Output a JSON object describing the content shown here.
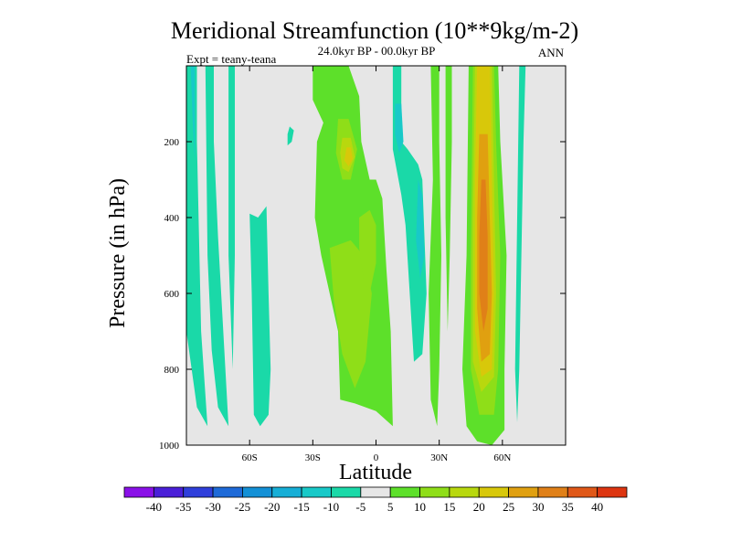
{
  "chart_data": {
    "type": "heatmap",
    "subtype": "filled-contour",
    "title": "Meridional Streamfunction (10**9kg/m-2)",
    "subtitle": "24.0kyr BP - 00.0kyr BP",
    "left_label": "Expt = teany-teana",
    "right_label": "ANN",
    "xlabel": "Latitude",
    "ylabel": "Pressure (in hPa)",
    "xlim": [
      -90,
      90
    ],
    "ylim": [
      0,
      1000
    ],
    "y_inverted": true,
    "x_ticks": [
      {
        "value": -60,
        "label": "60S"
      },
      {
        "value": -30,
        "label": "30S"
      },
      {
        "value": 0,
        "label": "0"
      },
      {
        "value": 30,
        "label": "30N"
      },
      {
        "value": 60,
        "label": "60N"
      }
    ],
    "y_ticks": [
      {
        "value": 200,
        "label": "200"
      },
      {
        "value": 400,
        "label": "400"
      },
      {
        "value": 600,
        "label": "600"
      },
      {
        "value": 800,
        "label": "800"
      },
      {
        "value": 1000,
        "label": "1000"
      }
    ],
    "background_color": "#e6e6e6",
    "colorbar": {
      "levels": [
        -40,
        -35,
        -30,
        -25,
        -20,
        -15,
        -10,
        -5,
        5,
        10,
        15,
        20,
        25,
        30,
        35,
        40
      ],
      "labels": [
        "-40",
        "-35",
        "-30",
        "-25",
        "-20",
        "-15",
        "-10",
        "-5",
        "5",
        "10",
        "15",
        "20",
        "25",
        "30",
        "35",
        "40"
      ],
      "colors": [
        "#8a10e8",
        "#4a1fd8",
        "#2f3fdb",
        "#1e6ad8",
        "#1390d6",
        "#16aed6",
        "#18c9c8",
        "#1ad9a8",
        "#e6e6e6",
        "#5de02a",
        "#8fde18",
        "#b8d80e",
        "#d8c80a",
        "#e0a010",
        "#e08018",
        "#e05818",
        "#dd3510"
      ]
    },
    "regions": [
      {
        "name": "sh-polar-band-a",
        "level": -10,
        "points": [
          [
            -90,
            0
          ],
          [
            -85,
            0
          ],
          [
            -85,
            200
          ],
          [
            -84,
            450
          ],
          [
            -83,
            700
          ],
          [
            -80,
            950
          ],
          [
            -85,
            900
          ],
          [
            -90,
            700
          ]
        ]
      },
      {
        "name": "sh-polar-band-b",
        "level": -10,
        "points": [
          [
            -81,
            0
          ],
          [
            -77,
            0
          ],
          [
            -77,
            200
          ],
          [
            -75,
            450
          ],
          [
            -72,
            750
          ],
          [
            -70,
            950
          ],
          [
            -75,
            900
          ],
          [
            -78,
            750
          ],
          [
            -80,
            500
          ]
        ]
      },
      {
        "name": "sh-polar-core",
        "level": -15,
        "points": [
          [
            -88,
            0
          ],
          [
            -86,
            0
          ],
          [
            -86,
            150
          ],
          [
            -86,
            250
          ],
          [
            -87,
            150
          ]
        ]
      },
      {
        "name": "sh-narrow-strip",
        "level": -10,
        "points": [
          [
            -70,
            0
          ],
          [
            -67,
            0
          ],
          [
            -67,
            200
          ],
          [
            -67,
            500
          ],
          [
            -68,
            800
          ],
          [
            -70,
            500
          ],
          [
            -70,
            200
          ]
        ]
      },
      {
        "name": "sh-midlat-column",
        "level": -10,
        "points": [
          [
            -60,
            390
          ],
          [
            -56,
            400
          ],
          [
            -52,
            370
          ],
          [
            -51,
            600
          ],
          [
            -50,
            800
          ],
          [
            -51,
            920
          ],
          [
            -55,
            950
          ],
          [
            -58,
            920
          ],
          [
            -59,
            600
          ]
        ]
      },
      {
        "name": "sh-small-blob",
        "level": -10,
        "points": [
          [
            -42,
            210
          ],
          [
            -40,
            200
          ],
          [
            -39,
            170
          ],
          [
            -41,
            160
          ],
          [
            -42,
            180
          ]
        ]
      },
      {
        "name": "tropical-broad-green",
        "level": 5,
        "points": [
          [
            -30,
            0
          ],
          [
            -13,
            0
          ],
          [
            -8,
            80
          ],
          [
            -7,
            200
          ],
          [
            -3,
            300
          ],
          [
            0,
            300
          ],
          [
            3,
            350
          ],
          [
            5,
            540
          ],
          [
            7,
            700
          ],
          [
            8,
            950
          ],
          [
            0,
            910
          ],
          [
            -10,
            890
          ],
          [
            -17,
            880
          ],
          [
            -18,
            700
          ],
          [
            -22,
            600
          ],
          [
            -26,
            500
          ],
          [
            -29,
            400
          ],
          [
            -28,
            200
          ],
          [
            -25,
            150
          ],
          [
            -30,
            90
          ]
        ]
      },
      {
        "name": "tropical-yellowgreen-left",
        "level": 10,
        "points": [
          [
            -18,
            140
          ],
          [
            -13,
            140
          ],
          [
            -9,
            220
          ],
          [
            -12,
            300
          ],
          [
            -16,
            300
          ],
          [
            -19,
            230
          ]
        ]
      },
      {
        "name": "tropical-yellow-core",
        "level": 15,
        "points": [
          [
            -16,
            190
          ],
          [
            -12,
            190
          ],
          [
            -10,
            240
          ],
          [
            -13,
            280
          ],
          [
            -16,
            270
          ],
          [
            -17,
            230
          ]
        ]
      },
      {
        "name": "tropical-gold-core",
        "level": 20,
        "points": [
          [
            -14,
            215
          ],
          [
            -12,
            215
          ],
          [
            -11,
            245
          ],
          [
            -13,
            265
          ],
          [
            -15,
            250
          ]
        ]
      },
      {
        "name": "tropical-lower-yellowgreen",
        "level": 10,
        "points": [
          [
            -22,
            480
          ],
          [
            -12,
            460
          ],
          [
            -6,
            500
          ],
          [
            -2,
            600
          ],
          [
            -5,
            780
          ],
          [
            -10,
            850
          ],
          [
            -16,
            760
          ],
          [
            -20,
            620
          ]
        ]
      },
      {
        "name": "tropical-mid-yellowgreen",
        "level": 10,
        "points": [
          [
            -8,
            400
          ],
          [
            -3,
            380
          ],
          [
            0,
            420
          ],
          [
            0,
            520
          ],
          [
            -3,
            600
          ],
          [
            -6,
            560
          ],
          [
            -8,
            480
          ]
        ]
      },
      {
        "name": "eq-cyan-column",
        "level": -10,
        "points": [
          [
            8,
            0
          ],
          [
            12,
            0
          ],
          [
            12,
            200
          ],
          [
            15,
            220
          ],
          [
            20,
            260
          ],
          [
            22,
            300
          ],
          [
            24,
            600
          ],
          [
            22,
            760
          ],
          [
            18,
            780
          ],
          [
            16,
            600
          ],
          [
            14,
            420
          ],
          [
            12,
            340
          ],
          [
            8,
            220
          ]
        ]
      },
      {
        "name": "eq-blue-core",
        "level": -15,
        "points": [
          [
            9,
            100
          ],
          [
            12,
            100
          ],
          [
            13,
            200
          ],
          [
            11,
            230
          ],
          [
            9,
            180
          ]
        ]
      },
      {
        "name": "eq-lower-blue",
        "level": -15,
        "points": [
          [
            20,
            300
          ],
          [
            22,
            340
          ],
          [
            23,
            500
          ],
          [
            21,
            560
          ],
          [
            19,
            460
          ]
        ]
      },
      {
        "name": "nh-green-strip",
        "level": 5,
        "points": [
          [
            26,
            0
          ],
          [
            30,
            0
          ],
          [
            30,
            200
          ],
          [
            31,
            500
          ],
          [
            30,
            800
          ],
          [
            29,
            950
          ],
          [
            26,
            880
          ],
          [
            25,
            600
          ],
          [
            27,
            300
          ]
        ]
      },
      {
        "name": "nh-narrow-strip-left",
        "level": 5,
        "points": [
          [
            33,
            0
          ],
          [
            36,
            0
          ],
          [
            36,
            200
          ],
          [
            35,
            500
          ],
          [
            34,
            700
          ],
          [
            33,
            400
          ]
        ]
      },
      {
        "name": "nh-jet-outer",
        "level": 5,
        "points": [
          [
            44,
            0
          ],
          [
            58,
            0
          ],
          [
            59,
            200
          ],
          [
            62,
            500
          ],
          [
            61,
            800
          ],
          [
            61,
            960
          ],
          [
            55,
            1000
          ],
          [
            48,
            990
          ],
          [
            43,
            950
          ],
          [
            41,
            800
          ],
          [
            43,
            500
          ]
        ]
      },
      {
        "name": "nh-jet-yellowgreen",
        "level": 10,
        "points": [
          [
            46,
            0
          ],
          [
            56,
            0
          ],
          [
            57,
            200
          ],
          [
            59,
            500
          ],
          [
            58,
            800
          ],
          [
            56,
            920
          ],
          [
            49,
            920
          ],
          [
            45,
            800
          ],
          [
            45,
            500
          ]
        ]
      },
      {
        "name": "nh-jet-yellow",
        "level": 15,
        "points": [
          [
            47,
            0
          ],
          [
            55,
            0
          ],
          [
            56,
            300
          ],
          [
            57,
            600
          ],
          [
            56,
            820
          ],
          [
            50,
            860
          ],
          [
            46,
            780
          ],
          [
            46,
            400
          ]
        ]
      },
      {
        "name": "nh-jet-gold",
        "level": 20,
        "points": [
          [
            48,
            0
          ],
          [
            54,
            0
          ],
          [
            55,
            300
          ],
          [
            56,
            600
          ],
          [
            55,
            800
          ],
          [
            50,
            820
          ],
          [
            47,
            700
          ],
          [
            47,
            300
          ]
        ]
      },
      {
        "name": "nh-jet-orange",
        "level": 25,
        "points": [
          [
            49,
            180
          ],
          [
            53,
            180
          ],
          [
            54,
            400
          ],
          [
            55,
            600
          ],
          [
            54,
            760
          ],
          [
            50,
            780
          ],
          [
            48,
            640
          ],
          [
            48,
            400
          ]
        ]
      },
      {
        "name": "nh-jet-core",
        "level": 30,
        "points": [
          [
            50,
            300
          ],
          [
            52,
            300
          ],
          [
            53,
            450
          ],
          [
            53,
            640
          ],
          [
            51,
            700
          ],
          [
            49,
            600
          ],
          [
            49,
            450
          ]
        ]
      },
      {
        "name": "nh-cyan-strip",
        "level": -10,
        "points": [
          [
            68,
            0
          ],
          [
            71,
            0
          ],
          [
            70,
            200
          ],
          [
            69,
            500
          ],
          [
            68,
            800
          ],
          [
            67,
            940
          ],
          [
            66,
            800
          ],
          [
            67,
            400
          ]
        ]
      }
    ]
  }
}
